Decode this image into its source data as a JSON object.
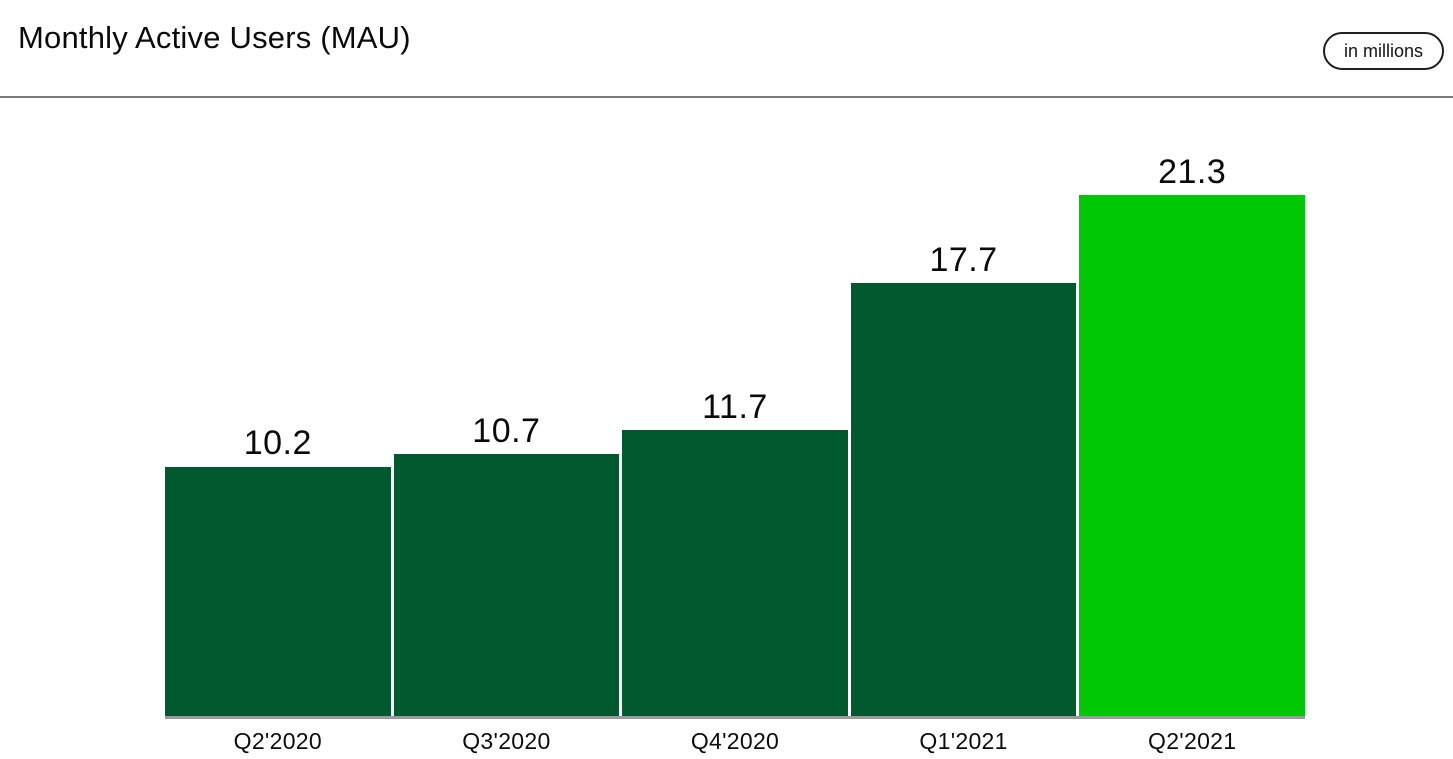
{
  "header": {
    "title": "Monthly Active Users (MAU)",
    "units_badge": "in millions"
  },
  "chart_data": {
    "type": "bar",
    "title": "Monthly Active Users (MAU)",
    "units": "in millions",
    "categories": [
      "Q2'2020",
      "Q3'2020",
      "Q4'2020",
      "Q1'2021",
      "Q2'2021"
    ],
    "values": [
      10.2,
      10.7,
      11.7,
      17.7,
      21.3
    ],
    "value_labels_shown": true,
    "highlighted_category": "Q2'2021",
    "bar_color": "#01592F",
    "highlight_color": "#00C805",
    "ylim": [
      0,
      21.3
    ],
    "grid": false,
    "legend": "none",
    "xlabel": "",
    "ylabel": ""
  }
}
